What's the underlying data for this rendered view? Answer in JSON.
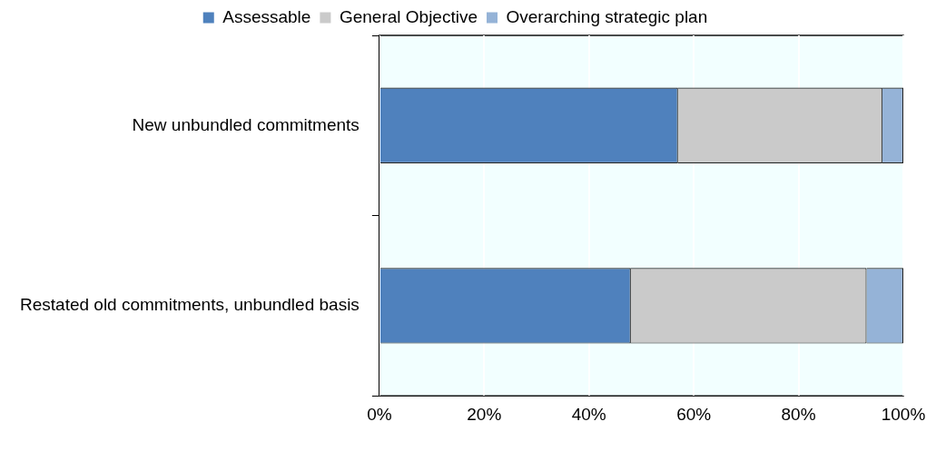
{
  "chart_data": {
    "type": "bar",
    "orientation": "horizontal",
    "stacked": true,
    "categories": [
      "New unbundled commitments",
      "Restated old commitments, unbundled basis"
    ],
    "series": [
      {
        "name": "Assessable",
        "color": "#4f81bd",
        "values": [
          57,
          48
        ]
      },
      {
        "name": "General Objective",
        "color": "#cacaca",
        "values": [
          39,
          45
        ]
      },
      {
        "name": "Overarching strategic plan",
        "color": "#95b3d7",
        "values": [
          4,
          7
        ]
      }
    ],
    "xlim": [
      0,
      100
    ],
    "xticks": [
      {
        "value": 0,
        "label": "0%"
      },
      {
        "value": 20,
        "label": "20%"
      },
      {
        "value": 40,
        "label": "40%"
      },
      {
        "value": 60,
        "label": "60%"
      },
      {
        "value": 80,
        "label": "80%"
      },
      {
        "value": 100,
        "label": "100%"
      }
    ],
    "grid": "x",
    "legend": "top"
  }
}
